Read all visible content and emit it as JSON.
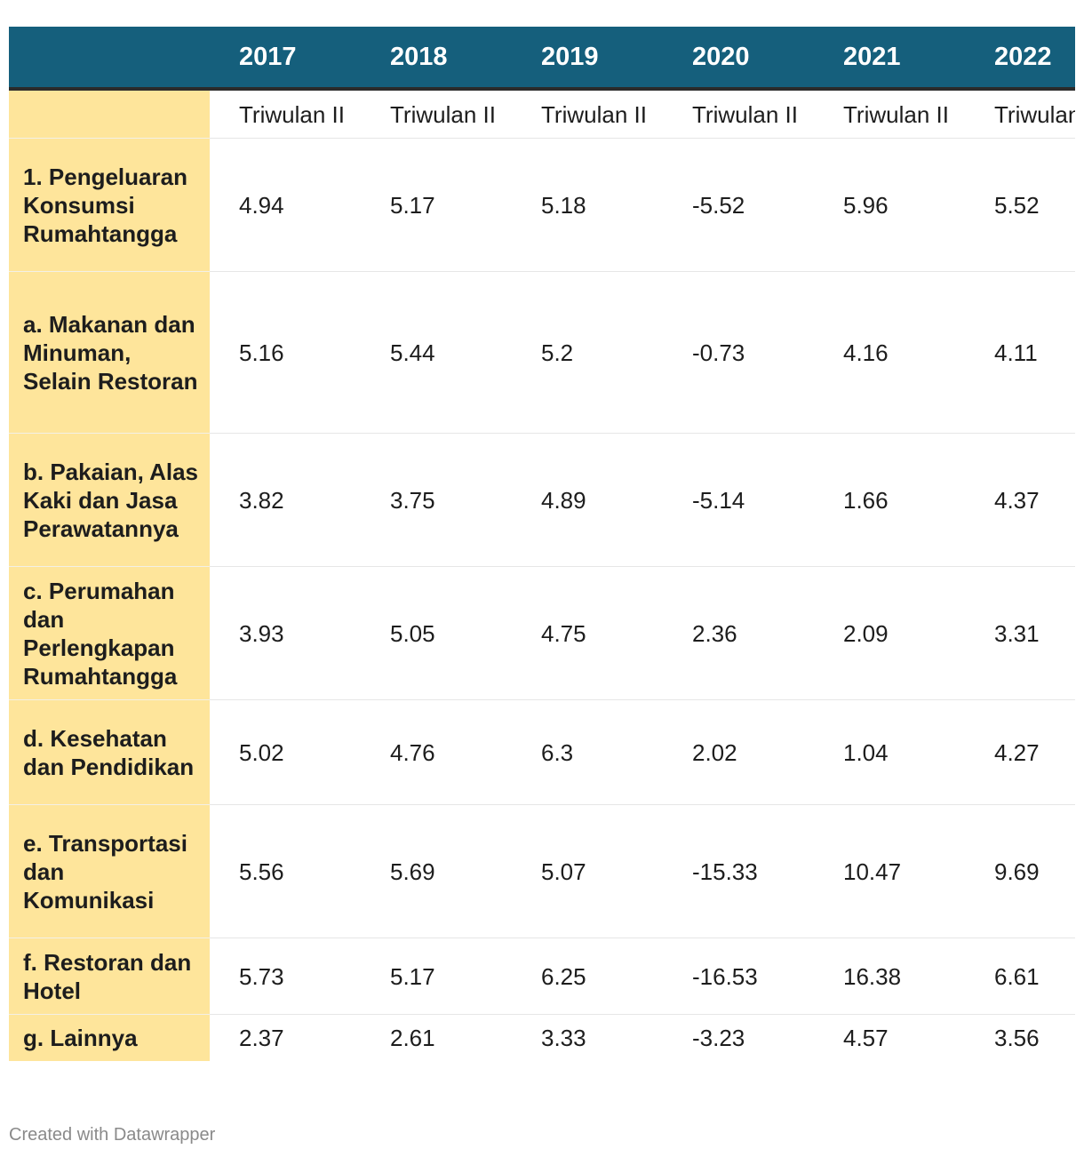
{
  "chart_data": {
    "type": "table",
    "columns": [
      "2017",
      "2018",
      "2019",
      "2020",
      "2021",
      "2022"
    ],
    "period_label": "Triwulan II",
    "rows": [
      {
        "label": "1. Pengeluaran Konsumsi Rumahtangga",
        "values": [
          "4.94",
          "5.17",
          "5.18",
          "-5.52",
          "5.96",
          "5.52"
        ]
      },
      {
        "label": "a. Makanan dan Minuman, Selain Restoran",
        "values": [
          "5.16",
          "5.44",
          "5.2",
          "-0.73",
          "4.16",
          "4.11"
        ]
      },
      {
        "label": "b. Pakaian, Alas Kaki dan Jasa Perawatannya",
        "values": [
          "3.82",
          "3.75",
          "4.89",
          "-5.14",
          "1.66",
          "4.37"
        ]
      },
      {
        "label": "c. Perumahan dan Perlengkapan Rumahtangga",
        "values": [
          "3.93",
          "5.05",
          "4.75",
          "2.36",
          "2.09",
          "3.31"
        ]
      },
      {
        "label": "d. Kesehatan dan Pendidikan",
        "values": [
          "5.02",
          "4.76",
          "6.3",
          "2.02",
          "1.04",
          "4.27"
        ]
      },
      {
        "label": "e. Transportasi dan Komunikasi",
        "values": [
          "5.56",
          "5.69",
          "5.07",
          "-15.33",
          "10.47",
          "9.69"
        ]
      },
      {
        "label": "f. Restoran dan Hotel",
        "values": [
          "5.73",
          "5.17",
          "6.25",
          "-16.53",
          "16.38",
          "6.61"
        ]
      },
      {
        "label": "g. Lainnya",
        "values": [
          "2.37",
          "2.61",
          "3.33",
          "-3.23",
          "4.57",
          "3.56"
        ]
      }
    ]
  },
  "colors": {
    "header_bg": "#155f7c",
    "label_bg": "#fee59b",
    "header_rule": "#2b2b2b"
  },
  "footer": {
    "credit": "Created with Datawrapper"
  }
}
